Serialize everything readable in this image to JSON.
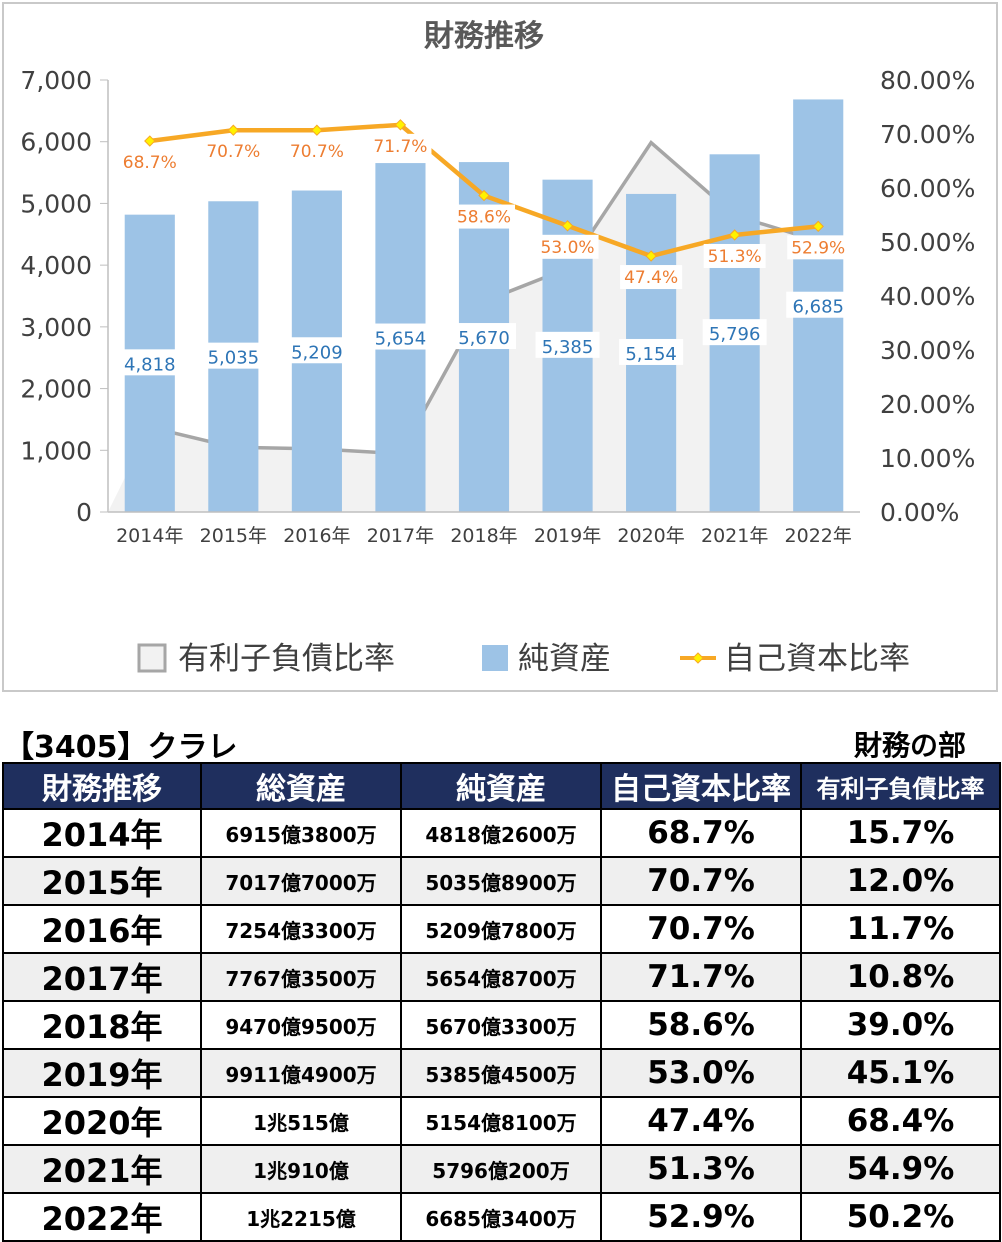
{
  "chart_data": {
    "type": "bar",
    "title": "財務推移",
    "categories": [
      "2014年",
      "2015年",
      "2016年",
      "2017年",
      "2018年",
      "2019年",
      "2020年",
      "2021年",
      "2022年"
    ],
    "series": [
      {
        "name": "有利子負債比率",
        "kind": "area",
        "axis": "right",
        "color": "#a6a6a6",
        "fill": "#f2f2f2",
        "values": [
          15.7,
          12.0,
          11.7,
          10.8,
          39.0,
          45.1,
          68.4,
          54.9,
          50.2
        ]
      },
      {
        "name": "純資産",
        "kind": "bar",
        "axis": "left",
        "color": "#9dc3e6",
        "values": [
          4818,
          5035,
          5209,
          5654,
          5670,
          5385,
          5154,
          5796,
          6685
        ],
        "labels": [
          "4,818",
          "5,035",
          "5,209",
          "5,654",
          "5,670",
          "5,385",
          "5,154",
          "5,796",
          "6,685"
        ]
      },
      {
        "name": "自己資本比率",
        "kind": "line",
        "axis": "right",
        "color": "#f7a825",
        "values": [
          68.7,
          70.7,
          70.7,
          71.7,
          58.6,
          53.0,
          47.4,
          51.3,
          52.9
        ],
        "labels": [
          "68.7%",
          "70.7%",
          "70.7%",
          "71.7%",
          "58.6%",
          "53.0%",
          "47.4%",
          "51.3%",
          "52.9%"
        ]
      }
    ],
    "ylim": [
      0,
      7000
    ],
    "y2lim": [
      0,
      80
    ],
    "yticks": [
      "0",
      "1,000",
      "2,000",
      "3,000",
      "4,000",
      "5,000",
      "6,000",
      "7,000"
    ],
    "y2ticks": [
      "0.00%",
      "10.00%",
      "20.00%",
      "30.00%",
      "40.00%",
      "50.00%",
      "60.00%",
      "70.00%",
      "80.00%"
    ],
    "legend_position": "bottom",
    "grid": false
  },
  "header": {
    "company": "【3405】クラレ",
    "section": "財務の部"
  },
  "table": {
    "columns": [
      "財務推移",
      "総資産",
      "純資産",
      "自己資本比率",
      "有利子負債比率"
    ],
    "rows": [
      [
        "2014年",
        "6915億3800万",
        "4818億2600万",
        "68.7%",
        "15.7%"
      ],
      [
        "2015年",
        "7017億7000万",
        "5035億8900万",
        "70.7%",
        "12.0%"
      ],
      [
        "2016年",
        "7254億3300万",
        "5209億7800万",
        "70.7%",
        "11.7%"
      ],
      [
        "2017年",
        "7767億3500万",
        "5654億8700万",
        "71.7%",
        "10.8%"
      ],
      [
        "2018年",
        "9470億9500万",
        "5670億3300万",
        "58.6%",
        "39.0%"
      ],
      [
        "2019年",
        "9911億4900万",
        "5385億4500万",
        "53.0%",
        "45.1%"
      ],
      [
        "2020年",
        "1兆515億",
        "5154億8100万",
        "47.4%",
        "68.4%"
      ],
      [
        "2021年",
        "1兆910億",
        "5796億200万",
        "51.3%",
        "54.9%"
      ],
      [
        "2022年",
        "1兆2215億",
        "6685億3400万",
        "52.9%",
        "50.2%"
      ]
    ]
  }
}
